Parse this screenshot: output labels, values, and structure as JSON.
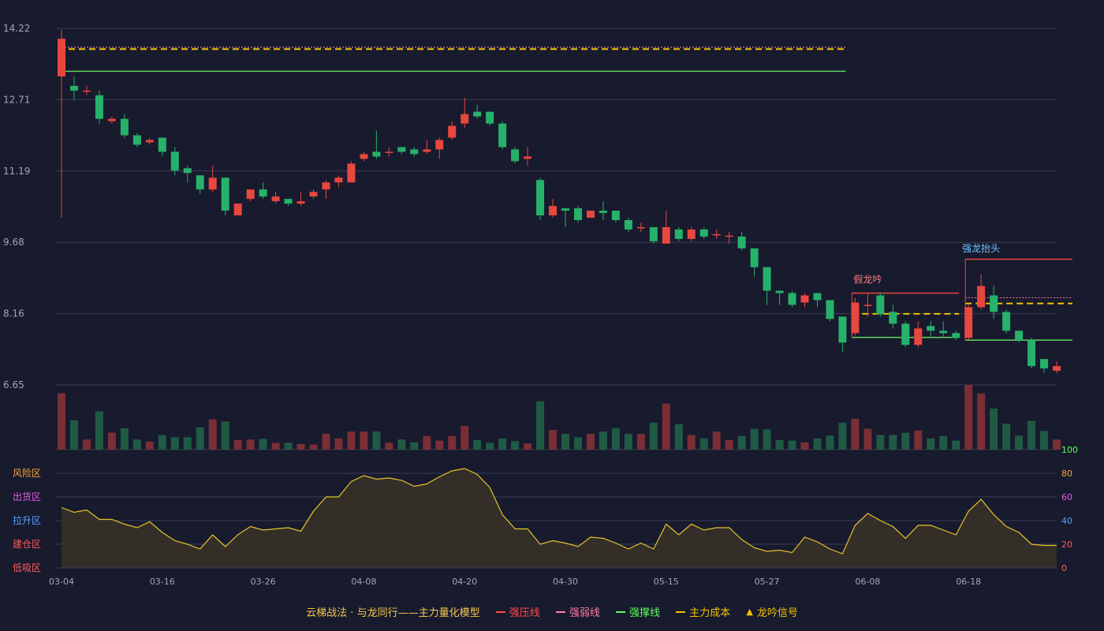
{
  "chart_data": {
    "type": "candlestick",
    "price_ticks": [
      "14.22",
      "12.71",
      "11.19",
      "9.68",
      "8.16",
      "6.65"
    ],
    "price_range": [
      6.65,
      14.22
    ],
    "date_labels": [
      {
        "index": 0,
        "text": "03-04"
      },
      {
        "index": 8,
        "text": "03-16"
      },
      {
        "index": 16,
        "text": "03-26"
      },
      {
        "index": 24,
        "text": "04-08"
      },
      {
        "index": 32,
        "text": "04-20"
      },
      {
        "index": 40,
        "text": "04-30"
      },
      {
        "index": 48,
        "text": "05-15"
      },
      {
        "index": 56,
        "text": "05-27"
      },
      {
        "index": 64,
        "text": "06-08"
      },
      {
        "index": 72,
        "text": "06-18"
      }
    ],
    "candles": [
      [
        13.2,
        14.0,
        14.2,
        10.2
      ],
      [
        13.0,
        12.9,
        13.2,
        12.7
      ],
      [
        12.9,
        12.9,
        13.0,
        12.8
      ],
      [
        12.8,
        12.3,
        12.9,
        12.2
      ],
      [
        12.25,
        12.3,
        12.35,
        12.2
      ],
      [
        12.3,
        11.95,
        12.4,
        11.9
      ],
      [
        11.95,
        11.75,
        12.0,
        11.7
      ],
      [
        11.8,
        11.85,
        11.9,
        11.75
      ],
      [
        11.9,
        11.6,
        11.9,
        11.5
      ],
      [
        11.6,
        11.2,
        11.7,
        11.1
      ],
      [
        11.25,
        11.15,
        11.3,
        10.95
      ],
      [
        11.1,
        10.8,
        11.1,
        10.7
      ],
      [
        10.8,
        11.05,
        11.3,
        10.75
      ],
      [
        11.05,
        10.35,
        11.05,
        10.25
      ],
      [
        10.25,
        10.5,
        10.5,
        10.35
      ],
      [
        10.6,
        10.8,
        10.8,
        10.55
      ],
      [
        10.8,
        10.65,
        10.95,
        10.6
      ],
      [
        10.55,
        10.65,
        10.75,
        10.5
      ],
      [
        10.6,
        10.5,
        10.6,
        10.45
      ],
      [
        10.5,
        10.55,
        10.75,
        10.45
      ],
      [
        10.65,
        10.75,
        10.8,
        10.6
      ],
      [
        10.8,
        10.95,
        11.0,
        10.6
      ],
      [
        10.95,
        11.05,
        11.1,
        10.85
      ],
      [
        10.95,
        11.35,
        11.4,
        10.95
      ],
      [
        11.45,
        11.55,
        11.6,
        11.4
      ],
      [
        11.6,
        11.5,
        12.05,
        11.45
      ],
      [
        11.6,
        11.6,
        11.7,
        11.5
      ],
      [
        11.7,
        11.6,
        11.7,
        11.55
      ],
      [
        11.65,
        11.55,
        11.7,
        11.5
      ],
      [
        11.6,
        11.65,
        11.85,
        11.55
      ],
      [
        11.65,
        11.85,
        11.9,
        11.45
      ],
      [
        11.9,
        12.15,
        12.25,
        11.85
      ],
      [
        12.2,
        12.4,
        12.75,
        12.1
      ],
      [
        12.45,
        12.35,
        12.6,
        12.3
      ],
      [
        12.45,
        12.2,
        12.45,
        12.15
      ],
      [
        12.2,
        11.7,
        12.25,
        11.65
      ],
      [
        11.65,
        11.4,
        11.7,
        11.35
      ],
      [
        11.45,
        11.5,
        11.7,
        11.3
      ],
      [
        11.0,
        10.25,
        11.05,
        10.15
      ],
      [
        10.25,
        10.45,
        10.6,
        10.2
      ],
      [
        10.4,
        10.35,
        10.4,
        10.0
      ],
      [
        10.4,
        10.15,
        10.45,
        10.1
      ],
      [
        10.2,
        10.35,
        10.35,
        10.2
      ],
      [
        10.35,
        10.3,
        10.55,
        10.15
      ],
      [
        10.35,
        10.15,
        10.35,
        10.1
      ],
      [
        10.15,
        9.95,
        10.2,
        9.9
      ],
      [
        10.0,
        10.0,
        10.1,
        9.9
      ],
      [
        10.0,
        9.7,
        10.0,
        9.65
      ],
      [
        9.65,
        10.0,
        10.35,
        9.65
      ],
      [
        9.95,
        9.75,
        10.0,
        9.7
      ],
      [
        9.75,
        9.95,
        10.0,
        9.7
      ],
      [
        9.95,
        9.8,
        10.0,
        9.75
      ],
      [
        9.85,
        9.85,
        9.95,
        9.75
      ],
      [
        9.82,
        9.82,
        9.9,
        9.65
      ],
      [
        9.8,
        9.55,
        9.9,
        9.5
      ],
      [
        9.55,
        9.15,
        9.55,
        8.95
      ],
      [
        9.15,
        8.65,
        9.15,
        8.35
      ],
      [
        8.65,
        8.6,
        8.65,
        8.35
      ],
      [
        8.6,
        8.35,
        8.65,
        8.3
      ],
      [
        8.4,
        8.55,
        8.6,
        8.3
      ],
      [
        8.6,
        8.45,
        8.6,
        8.3
      ],
      [
        8.45,
        8.05,
        8.45,
        8.0
      ],
      [
        8.1,
        7.55,
        8.1,
        7.35
      ],
      [
        7.75,
        8.4,
        8.5,
        7.7
      ],
      [
        8.35,
        8.35,
        8.6,
        8.1
      ],
      [
        8.55,
        8.15,
        8.6,
        8.1
      ],
      [
        8.2,
        7.95,
        8.35,
        7.85
      ],
      [
        7.95,
        7.5,
        8.0,
        7.45
      ],
      [
        7.5,
        7.85,
        8.0,
        7.45
      ],
      [
        7.9,
        7.8,
        8.0,
        7.65
      ],
      [
        7.8,
        7.75,
        8.0,
        7.65
      ],
      [
        7.75,
        7.65,
        7.8,
        7.6
      ],
      [
        7.65,
        8.3,
        8.35,
        7.6
      ],
      [
        8.3,
        8.75,
        9.0,
        8.25
      ],
      [
        8.55,
        8.2,
        8.75,
        8.05
      ],
      [
        8.2,
        7.8,
        8.25,
        7.75
      ],
      [
        7.8,
        7.6,
        7.8,
        7.55
      ],
      [
        7.6,
        7.05,
        7.65,
        7.0
      ],
      [
        7.2,
        7.0,
        7.2,
        6.9
      ],
      [
        6.95,
        7.05,
        7.15,
        6.9
      ]
    ],
    "volume": [
      1.0,
      0.52,
      0.18,
      0.68,
      0.3,
      0.38,
      0.18,
      0.14,
      0.26,
      0.22,
      0.22,
      0.4,
      0.54,
      0.5,
      0.17,
      0.18,
      0.19,
      0.12,
      0.12,
      0.1,
      0.09,
      0.28,
      0.2,
      0.32,
      0.32,
      0.32,
      0.12,
      0.18,
      0.13,
      0.24,
      0.16,
      0.24,
      0.42,
      0.17,
      0.12,
      0.2,
      0.15,
      0.11,
      0.86,
      0.35,
      0.28,
      0.22,
      0.28,
      0.32,
      0.38,
      0.28,
      0.28,
      0.48,
      0.82,
      0.45,
      0.26,
      0.2,
      0.32,
      0.17,
      0.24,
      0.37,
      0.36,
      0.17,
      0.16,
      0.13,
      0.2,
      0.25,
      0.48,
      0.55,
      0.37,
      0.26,
      0.26,
      0.3,
      0.34,
      0.2,
      0.24,
      0.16,
      1.15,
      1.0,
      0.73,
      0.46,
      0.25,
      0.51,
      0.33,
      0.18
    ],
    "strong_pressure": [
      {
        "from": 0,
        "to": 62,
        "y": 13.82
      }
    ],
    "strong_weak": [
      {
        "from": 0,
        "to": 62,
        "y": 13.82
      }
    ],
    "strong_support": [
      {
        "from": 0,
        "to": 62,
        "y": 13.31
      }
    ],
    "main_cost": [
      {
        "from": 0,
        "to": 62,
        "y": 13.78
      }
    ],
    "box_pressure": [
      {
        "from": 63,
        "to": 71,
        "y": 8.6
      },
      {
        "from": 72,
        "to": 80,
        "y": 9.32
      }
    ],
    "box_weak": [
      {
        "from": 72,
        "to": 80,
        "y": 8.5
      }
    ],
    "box_support": [
      {
        "from": 63,
        "to": 71,
        "y": 7.66
      },
      {
        "from": 72,
        "to": 80,
        "y": 7.6
      }
    ],
    "box_cost": [
      {
        "from": 63,
        "to": 71,
        "y": 8.16
      },
      {
        "from": 72,
        "to": 80,
        "y": 8.38
      }
    ],
    "signals": [
      {
        "index": 64,
        "label": "假龙吟",
        "color": "#ff7a7a",
        "y": 8.82
      },
      {
        "index": 73,
        "label": "强龙抬头",
        "color": "#6ec6ff",
        "y": 9.48
      }
    ],
    "indicator": [
      51,
      47,
      49,
      41,
      41,
      37,
      34,
      39,
      30,
      23,
      20,
      16,
      28,
      18,
      28,
      35,
      32,
      33,
      34,
      31,
      48,
      60,
      60,
      73,
      78,
      75,
      76,
      74,
      69,
      71,
      77,
      82,
      84,
      79,
      68,
      45,
      33,
      33,
      20,
      23,
      21,
      18,
      26,
      25,
      21,
      16,
      21,
      16,
      37,
      28,
      37,
      32,
      34,
      34,
      24,
      17,
      14,
      15,
      13,
      26,
      22,
      16,
      12,
      36,
      46,
      40,
      35,
      25,
      36,
      36,
      32,
      28,
      48,
      58,
      45,
      35,
      30,
      20,
      19,
      19
    ],
    "indicator_ticks": [
      "0",
      "20",
      "40",
      "60",
      "80",
      "100"
    ],
    "indicator_range": [
      0,
      100
    ],
    "zones": [
      {
        "label": "风险区",
        "color": "#f2a93b"
      },
      {
        "label": "出货区",
        "color": "#e05ce0"
      },
      {
        "label": "拉升区",
        "color": "#5aa0ff"
      },
      {
        "label": "建仓区",
        "color": "#ff5a5a"
      },
      {
        "label": "低吸区",
        "color": "#ff5a5a"
      }
    ],
    "colors": {
      "up": "#e8473f",
      "down": "#26b26a",
      "vol_up": "#7a2e35",
      "vol_down": "#1f5a45",
      "pressure": "#e8473f",
      "weak": "#ff7aa0",
      "support": "#5fd35f",
      "cost": "#f2c200",
      "indicator": "#e6c32a",
      "grid": "#3a3d52",
      "axis_text": "#a3a7b8"
    }
  },
  "legend": {
    "title": "云梯战法 · 与龙同行——主力量化模型",
    "items": [
      {
        "label": "强压线",
        "color": "#ff4d4d",
        "style": "solid"
      },
      {
        "label": "强弱线",
        "color": "#ff7aa0",
        "style": "dashed"
      },
      {
        "label": "强撑线",
        "color": "#5fff5f",
        "style": "solid"
      },
      {
        "label": "主力成本",
        "color": "#f2c200",
        "style": "dashed"
      },
      {
        "label": "龙吟信号",
        "color": "#f2c200",
        "style": "triangle"
      }
    ]
  }
}
